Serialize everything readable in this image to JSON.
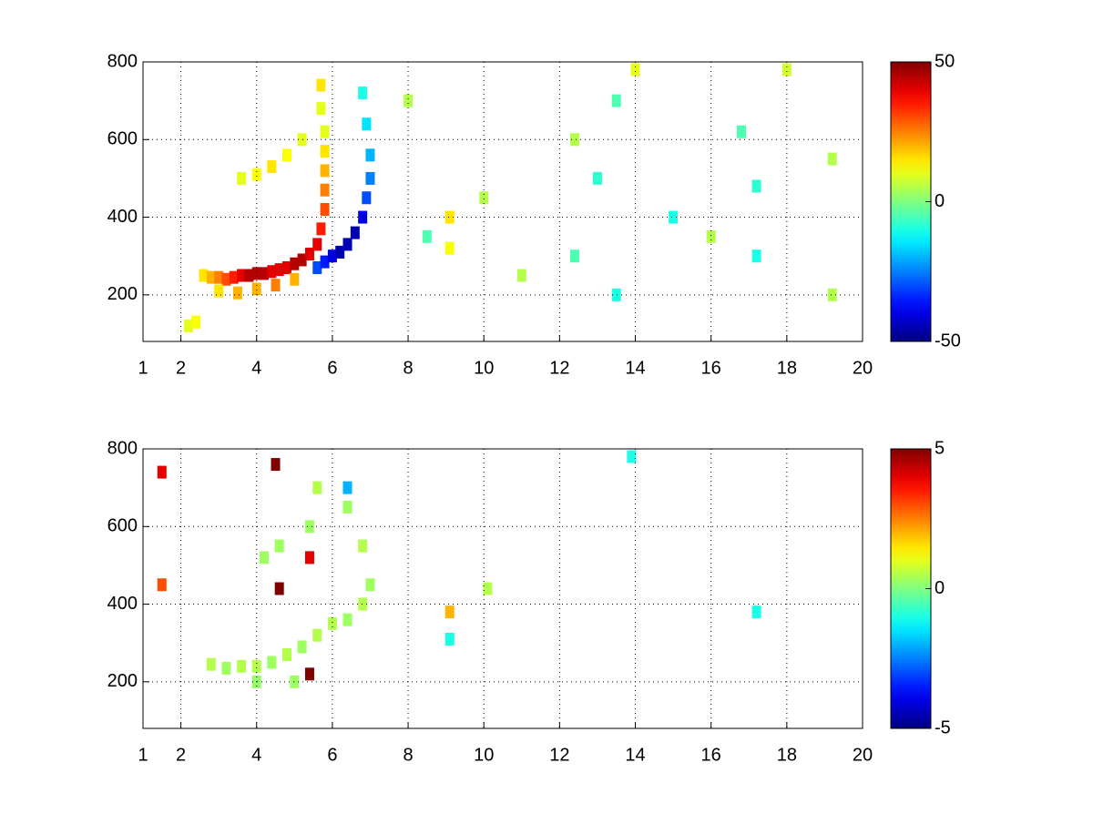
{
  "chart_data": [
    {
      "type": "heatmap",
      "colormap": "jet",
      "grid": true,
      "xlim": [
        1,
        20
      ],
      "ylim": [
        80,
        800
      ],
      "xticks": [
        1,
        2,
        4,
        6,
        8,
        10,
        12,
        14,
        16,
        18,
        20
      ],
      "yticks": [
        200,
        400,
        600,
        800
      ],
      "clim": [
        -50,
        50
      ],
      "cticks": [
        -50,
        0,
        50
      ],
      "cells": {
        "x": [
          2.6,
          2.8,
          3.0,
          3.2,
          3.4,
          3.6,
          3.8,
          4.0,
          4.2,
          4.4,
          4.6,
          4.8,
          5.0,
          5.2,
          5.4,
          5.6,
          5.7,
          5.8,
          5.8,
          5.8,
          5.8,
          5.8,
          5.7,
          5.7,
          3.0,
          3.5,
          4.0,
          4.5,
          5.0,
          3.6,
          4.0,
          4.4,
          4.8,
          5.2,
          5.6,
          5.8,
          6.0,
          6.2,
          6.4,
          6.6,
          6.8,
          6.9,
          7.0,
          7.0,
          6.9,
          6.8,
          2.2,
          2.4,
          9.1,
          9.1,
          10.0,
          12.4,
          12.4,
          13.0,
          13.5,
          13.5,
          14.0,
          15.0,
          16.0,
          16.8,
          17.2,
          17.2,
          18.0,
          19.2,
          19.2,
          8.0,
          8.5,
          11.0
        ],
        "y": [
          250,
          245,
          245,
          240,
          245,
          250,
          250,
          255,
          255,
          260,
          265,
          270,
          280,
          290,
          305,
          330,
          370,
          420,
          470,
          520,
          570,
          620,
          680,
          740,
          210,
          205,
          215,
          225,
          240,
          500,
          510,
          530,
          560,
          600,
          270,
          285,
          300,
          310,
          330,
          360,
          400,
          450,
          500,
          560,
          640,
          720,
          120,
          130,
          400,
          320,
          450,
          300,
          600,
          500,
          200,
          700,
          780,
          400,
          350,
          620,
          300,
          480,
          780,
          200,
          550,
          700,
          350,
          250
        ],
        "values": [
          15,
          20,
          25,
          30,
          35,
          40,
          45,
          45,
          45,
          40,
          40,
          40,
          45,
          45,
          40,
          40,
          35,
          30,
          25,
          20,
          15,
          10,
          10,
          15,
          15,
          20,
          20,
          25,
          20,
          10,
          12,
          15,
          12,
          10,
          -30,
          -35,
          -40,
          -45,
          -45,
          -45,
          -40,
          -30,
          -25,
          -20,
          -15,
          -10,
          10,
          12,
          15,
          12,
          5,
          -5,
          5,
          -8,
          -10,
          -5,
          10,
          -10,
          5,
          -5,
          -10,
          -8,
          8,
          5,
          5,
          5,
          -5,
          5
        ]
      }
    },
    {
      "type": "heatmap",
      "colormap": "jet",
      "grid": true,
      "xlim": [
        1,
        20
      ],
      "ylim": [
        80,
        800
      ],
      "xticks": [
        1,
        2,
        4,
        6,
        8,
        10,
        12,
        14,
        16,
        18,
        20
      ],
      "yticks": [
        200,
        400,
        600,
        800
      ],
      "clim": [
        -5,
        5
      ],
      "cticks": [
        -5,
        0,
        5
      ],
      "cells": {
        "x": [
          2.8,
          3.2,
          3.6,
          4.0,
          4.4,
          4.8,
          5.2,
          5.6,
          6.0,
          6.4,
          6.8,
          7.0,
          6.8,
          6.4,
          5.6,
          5.4,
          4.6,
          4.2,
          4.0,
          5.0,
          1.5,
          1.5,
          4.5,
          4.6,
          5.4,
          5.4,
          6.4,
          9.1,
          9.1,
          13.9,
          17.2,
          10.1
        ],
        "y": [
          245,
          235,
          240,
          240,
          250,
          270,
          290,
          320,
          350,
          360,
          400,
          450,
          550,
          650,
          700,
          600,
          550,
          520,
          200,
          200,
          740,
          450,
          760,
          440,
          520,
          220,
          700,
          380,
          310,
          780,
          380,
          440
        ],
        "values": [
          0.5,
          0.3,
          0.5,
          0.5,
          0.3,
          0.5,
          0.3,
          0.5,
          0.5,
          0.3,
          0.5,
          0.3,
          0.5,
          0.3,
          0.5,
          0.3,
          0.3,
          0.3,
          0.2,
          0.3,
          4,
          3,
          5,
          5,
          4,
          5,
          -2,
          2,
          -1,
          -1,
          -1,
          0.5
        ]
      }
    }
  ]
}
